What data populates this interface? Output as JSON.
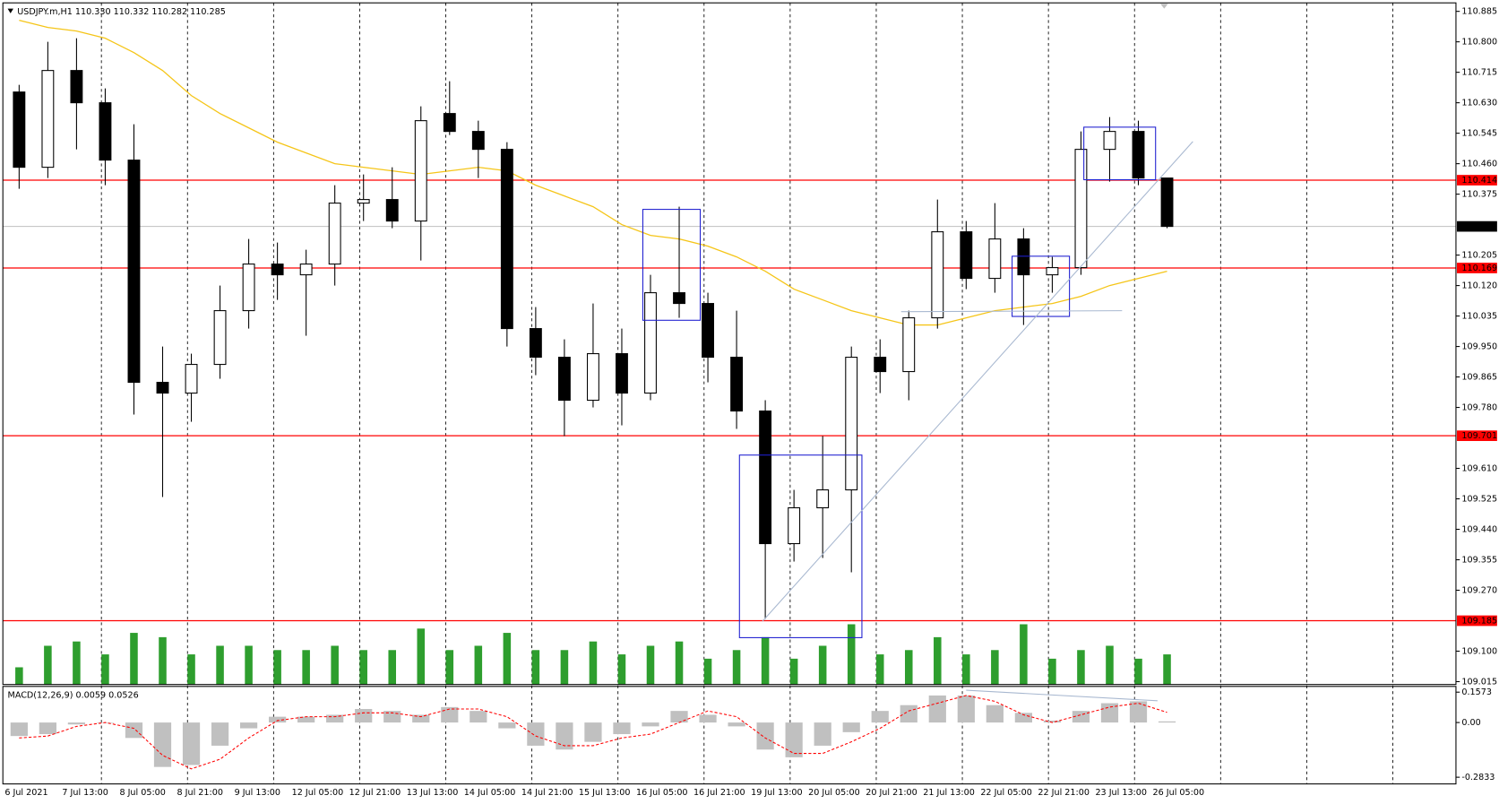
{
  "chart_data": [
    {
      "type": "candlestick",
      "title": "USDJPY.m,H1 110.330 110.332 110.282 110.285",
      "categories": [
        "6 Jul 2021",
        null,
        "7 Jul 13:00",
        null,
        "8 Jul 05:00",
        null,
        "8 Jul 21:00",
        null,
        "9 Jul 13:00",
        null,
        "12 Jul 05:00",
        null,
        "12 Jul 21:00",
        null,
        "13 Jul 13:00",
        null,
        "14 Jul 05:00",
        null,
        "14 Jul 21:00",
        null,
        "15 Jul 13:00",
        null,
        "16 Jul 05:00",
        null,
        "16 Jul 21:00",
        null,
        "19 Jul 13:00",
        null,
        "20 Jul 05:00",
        null,
        "20 Jul 21:00",
        null,
        "21 Jul 13:00",
        null,
        "22 Jul 05:00",
        null,
        "22 Jul 21:00",
        null,
        "23 Jul 13:00",
        null,
        "26 Jul 05:00"
      ],
      "open": [
        110.66,
        110.45,
        110.72,
        110.63,
        110.47,
        109.85,
        109.82,
        109.9,
        110.05,
        110.18,
        110.15,
        110.18,
        110.35,
        110.36,
        110.3,
        110.6,
        110.55,
        110.5,
        110.0,
        109.92,
        109.8,
        109.93,
        109.82,
        110.1,
        110.07,
        109.92,
        109.77,
        109.4,
        109.5,
        109.55,
        109.92,
        109.88,
        110.03,
        110.27,
        110.14,
        110.25,
        110.15,
        110.17,
        110.5,
        110.55,
        110.42
      ],
      "high": [
        110.68,
        110.8,
        110.81,
        110.67,
        110.57,
        109.95,
        109.93,
        110.12,
        110.25,
        110.24,
        110.22,
        110.4,
        110.43,
        110.45,
        110.62,
        110.69,
        110.58,
        110.52,
        110.06,
        109.97,
        110.07,
        110.0,
        110.15,
        110.34,
        110.1,
        110.05,
        109.8,
        109.55,
        109.7,
        109.95,
        109.97,
        110.05,
        110.36,
        110.3,
        110.35,
        110.28,
        110.2,
        110.55,
        110.59,
        110.58,
        110.42
      ],
      "low": [
        110.39,
        110.42,
        110.5,
        110.4,
        109.76,
        109.53,
        109.74,
        109.86,
        110.0,
        110.08,
        109.98,
        110.12,
        110.3,
        110.28,
        110.19,
        110.54,
        110.42,
        109.95,
        109.87,
        109.7,
        109.78,
        109.73,
        109.8,
        110.03,
        109.85,
        109.72,
        109.19,
        109.35,
        109.36,
        109.32,
        109.82,
        109.8,
        110.0,
        110.11,
        110.1,
        110.01,
        110.1,
        110.15,
        110.41,
        110.4,
        110.28
      ],
      "close": [
        110.45,
        110.72,
        110.63,
        110.47,
        109.85,
        109.82,
        109.9,
        110.05,
        110.18,
        110.15,
        110.18,
        110.35,
        110.36,
        110.3,
        110.58,
        110.55,
        110.5,
        110.0,
        109.92,
        109.8,
        109.93,
        109.82,
        110.1,
        110.07,
        109.92,
        109.77,
        109.4,
        109.5,
        109.55,
        109.92,
        109.88,
        110.03,
        110.27,
        110.14,
        110.25,
        110.15,
        110.17,
        110.5,
        110.55,
        110.42,
        110.285
      ],
      "up_color": "#ffffff",
      "down_color": "#000000",
      "ma": {
        "color": "#f5c518",
        "values": [
          110.86,
          110.84,
          110.83,
          110.81,
          110.77,
          110.72,
          110.65,
          110.6,
          110.56,
          110.52,
          110.49,
          110.46,
          110.45,
          110.44,
          110.43,
          110.44,
          110.45,
          110.44,
          110.4,
          110.37,
          110.34,
          110.29,
          110.26,
          110.25,
          110.23,
          110.2,
          110.16,
          110.11,
          110.08,
          110.05,
          110.03,
          110.01,
          110.01,
          110.03,
          110.05,
          110.06,
          110.07,
          110.09,
          110.12,
          110.14,
          110.16
        ]
      },
      "volume": {
        "color": "#2e9e2e",
        "vlim": [
          0,
          100
        ],
        "values": [
          20,
          45,
          50,
          35,
          60,
          55,
          35,
          45,
          45,
          40,
          40,
          45,
          40,
          40,
          65,
          40,
          45,
          60,
          40,
          40,
          50,
          35,
          45,
          50,
          30,
          40,
          55,
          30,
          45,
          70,
          35,
          40,
          55,
          35,
          40,
          70,
          30,
          40,
          45,
          30,
          35
        ]
      },
      "ylim": [
        109.007,
        110.906
      ],
      "yticks": [
        110.885,
        {
          "value": 110.8,
          "label": "110.800"
        },
        110.715,
        {
          "value": 110.63,
          "label": "110.630"
        },
        110.545,
        {
          "value": 110.46,
          "label": "110.460"
        },
        110.375,
        110.205,
        {
          "value": 110.12,
          "label": "110.120"
        },
        110.035,
        {
          "value": 109.95,
          "label": "109.950"
        },
        109.865,
        {
          "value": 109.78,
          "label": "109.780"
        },
        {
          "value": 109.61,
          "label": "109.610"
        },
        109.525,
        {
          "value": 109.44,
          "label": "109.440"
        },
        109.355,
        {
          "value": 109.27,
          "label": "109.270"
        },
        {
          "value": 109.1,
          "label": "109.100"
        },
        109.015
      ],
      "levels": [
        {
          "value": 110.414,
          "color": "#ff0000"
        },
        {
          "value": 110.169,
          "color": "#ff0000"
        },
        {
          "value": 109.701,
          "color": "#ff0000"
        },
        {
          "value": 109.185,
          "color": "#ff0000"
        }
      ],
      "last_price": 110.285,
      "last_color": "#000000"
    },
    {
      "type": "macd",
      "title": "MACD(12,26,9) 0.0059 0.0526",
      "histogram": {
        "color": "#c0c0c0",
        "values": [
          -0.07,
          -0.06,
          -0.01,
          0.0,
          -0.08,
          -0.23,
          -0.22,
          -0.12,
          -0.03,
          0.03,
          0.03,
          0.04,
          0.07,
          0.06,
          0.04,
          0.08,
          0.06,
          -0.03,
          -0.12,
          -0.14,
          -0.1,
          -0.06,
          -0.02,
          0.06,
          0.04,
          -0.02,
          -0.14,
          -0.18,
          -0.12,
          -0.05,
          0.06,
          0.09,
          0.14,
          0.14,
          0.09,
          0.05,
          0.01,
          0.06,
          0.1,
          0.11,
          0.0059
        ]
      },
      "signal": {
        "color": "#ff0000",
        "values": [
          -0.08,
          -0.07,
          -0.02,
          0.0,
          -0.03,
          -0.17,
          -0.24,
          -0.19,
          -0.08,
          0.01,
          0.03,
          0.03,
          0.05,
          0.05,
          0.03,
          0.07,
          0.07,
          0.03,
          -0.07,
          -0.12,
          -0.12,
          -0.08,
          -0.06,
          0.0,
          0.06,
          0.03,
          -0.08,
          -0.16,
          -0.16,
          -0.1,
          -0.03,
          0.06,
          0.1,
          0.14,
          0.11,
          0.04,
          0.0,
          0.04,
          0.08,
          0.1,
          0.0526
        ]
      },
      "ylim": [
        -0.318,
        0.187
      ],
      "yticks": [
        0.1573,
        {
          "value": 0,
          "label": "0.00"
        },
        -0.2833
      ]
    }
  ]
}
